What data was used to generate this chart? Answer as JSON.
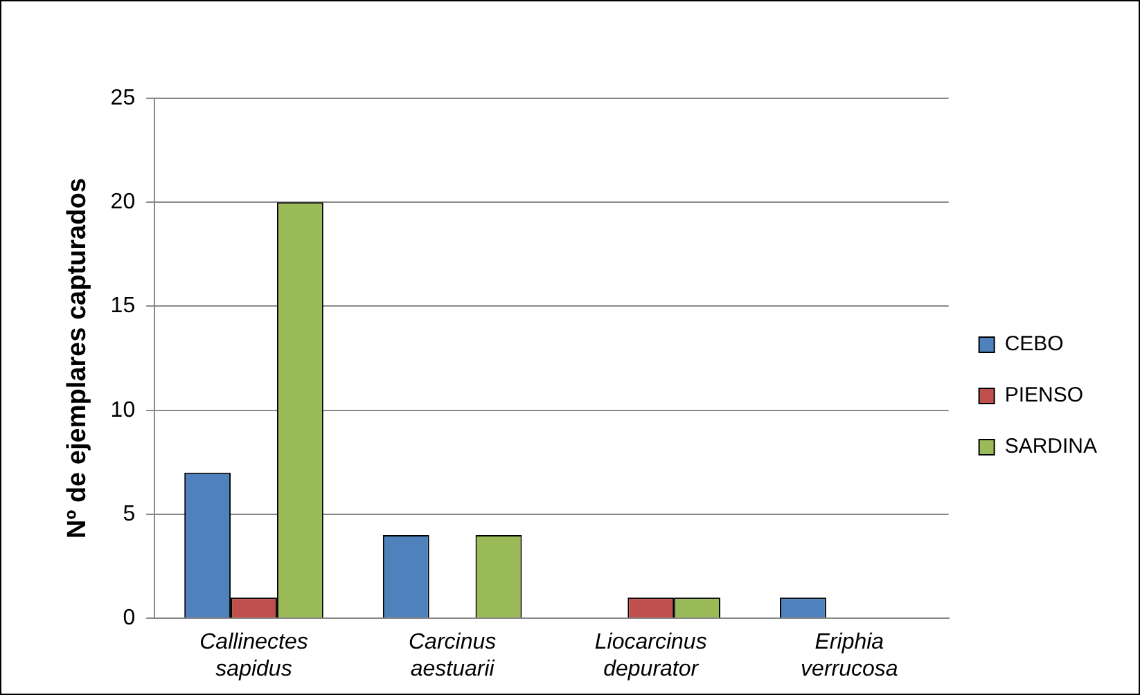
{
  "chart_data": {
    "type": "bar",
    "ylabel": "Nº de ejemplares capturados",
    "categories": [
      "Callinectes sapidus",
      "Carcinus aestuarii",
      "Liocarcinus depurator",
      "Eriphia verrucosa"
    ],
    "series": [
      {
        "name": "CEBO",
        "color": "#4f81bd",
        "values": [
          7,
          4,
          0,
          1
        ]
      },
      {
        "name": "PIENSO",
        "color": "#c0504d",
        "values": [
          1,
          0,
          1,
          0
        ]
      },
      {
        "name": "SARDINA",
        "color": "#9bbb59",
        "values": [
          20,
          4,
          1,
          0
        ]
      }
    ],
    "ylim": [
      0,
      25
    ],
    "yticks": [
      0,
      5,
      10,
      15,
      20,
      25
    ],
    "grid": "y",
    "legend": "right"
  }
}
